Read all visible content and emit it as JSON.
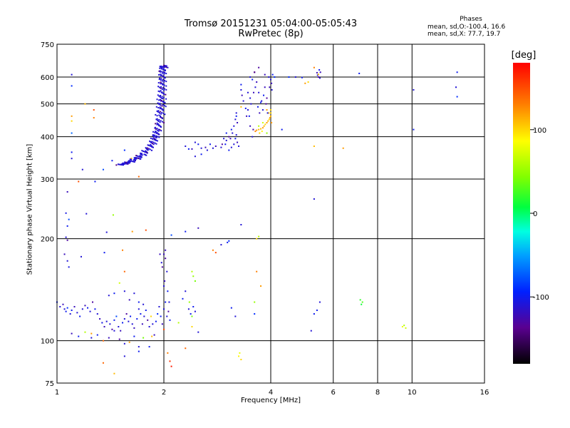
{
  "chart_data": {
    "type": "scatter",
    "title": "Tromsø 20151231 05:04:00-05:05:43",
    "subtitle": "RwPretec (8p)",
    "xlabel": "Frequency [MHz]",
    "ylabel": "Stationary phase Virtual Height [km]",
    "x_scale": "log",
    "y_scale": "log",
    "xlim": [
      1,
      16
    ],
    "ylim": [
      75,
      750
    ],
    "x_ticks": [
      1,
      2,
      4,
      6,
      8,
      10,
      16
    ],
    "x_tick_labels": [
      "1",
      "2",
      "4",
      "6",
      "8",
      "10",
      "16"
    ],
    "x_grid": [
      2,
      4,
      6,
      8,
      10
    ],
    "y_ticks": [
      75,
      100,
      200,
      300,
      400,
      500,
      600,
      750
    ],
    "y_tick_labels": [
      "75",
      "100",
      "200",
      "300",
      "400",
      "500",
      "600",
      "750"
    ],
    "y_grid": [
      100,
      200,
      300,
      400,
      500,
      600
    ],
    "grid": true,
    "stats": {
      "heading": "Phases",
      "line1": "mean, sd,O:-100.4, 16.6",
      "line2": "mean, sd,X:  77.7, 19.7"
    },
    "colorbar": {
      "label": "[deg]",
      "range": [
        -180,
        180
      ],
      "ticks": [
        100,
        0,
        -100
      ],
      "tick_labels": [
        "100",
        "0",
        "-100"
      ]
    },
    "points_note_values": "phase in degrees",
    "points": [
      [
        1.1,
        610,
        -110
      ],
      [
        1.1,
        565,
        -90
      ],
      [
        1.1,
        460,
        120
      ],
      [
        1.1,
        445,
        100
      ],
      [
        1.1,
        410,
        -70
      ],
      [
        1.1,
        360,
        -100
      ],
      [
        1.1,
        345,
        -110
      ],
      [
        1.2,
        500,
        110
      ],
      [
        1.27,
        480,
        150
      ],
      [
        1.27,
        455,
        130
      ],
      [
        1.18,
        320,
        -110
      ],
      [
        1.15,
        295,
        150
      ],
      [
        1.07,
        275,
        -120
      ],
      [
        1.06,
        238,
        -105
      ],
      [
        1.08,
        228,
        -80
      ],
      [
        1.07,
        218,
        -100
      ],
      [
        1.06,
        202,
        -110
      ],
      [
        1.07,
        198,
        -130
      ],
      [
        1.05,
        180,
        -120
      ],
      [
        1.07,
        172,
        -110
      ],
      [
        1.08,
        165,
        -105
      ],
      [
        1.21,
        237,
        -110
      ],
      [
        1.44,
        235,
        50
      ],
      [
        1.38,
        209,
        -110
      ],
      [
        1.36,
        182,
        -100
      ],
      [
        1.17,
        177,
        -110
      ],
      [
        1.53,
        185,
        130
      ],
      [
        1.63,
        210,
        120
      ],
      [
        1.78,
        212,
        150
      ],
      [
        2.1,
        205,
        -80
      ],
      [
        2.04,
        160,
        -110
      ],
      [
        2.02,
        175,
        -130
      ],
      [
        2.0,
        180,
        -120
      ],
      [
        1.28,
        295,
        -100
      ],
      [
        1.35,
        320,
        -80
      ],
      [
        1.43,
        340,
        -100
      ],
      [
        1.55,
        365,
        -90
      ],
      [
        1.62,
        345,
        110
      ],
      [
        1.7,
        305,
        140
      ],
      [
        1.0,
        130,
        -100
      ],
      [
        1.02,
        126,
        -110
      ],
      [
        1.04,
        128,
        -120
      ],
      [
        1.05,
        124,
        -110
      ],
      [
        1.06,
        122,
        -100
      ],
      [
        1.07,
        125,
        -90
      ],
      [
        1.09,
        120,
        -110
      ],
      [
        1.1,
        123,
        -100
      ],
      [
        1.12,
        126,
        -120
      ],
      [
        1.14,
        121,
        -110
      ],
      [
        1.16,
        118,
        -100
      ],
      [
        1.18,
        124,
        -110
      ],
      [
        1.2,
        127,
        -120
      ],
      [
        1.22,
        125,
        -100
      ],
      [
        1.24,
        122,
        -110
      ],
      [
        1.26,
        130,
        -130
      ],
      [
        1.28,
        124,
        -100
      ],
      [
        1.3,
        120,
        -110
      ],
      [
        1.32,
        116,
        -120
      ],
      [
        1.34,
        113,
        -105
      ],
      [
        1.36,
        110,
        -120
      ],
      [
        1.38,
        114,
        -110
      ],
      [
        1.41,
        112,
        -110
      ],
      [
        1.43,
        108,
        -130
      ],
      [
        1.45,
        115,
        -100
      ],
      [
        1.47,
        118,
        -80
      ],
      [
        1.49,
        110,
        -110
      ],
      [
        1.51,
        107,
        -120
      ],
      [
        1.53,
        113,
        -100
      ],
      [
        1.55,
        116,
        -110
      ],
      [
        1.57,
        120,
        -130
      ],
      [
        1.59,
        114,
        -110
      ],
      [
        1.61,
        118,
        -100
      ],
      [
        1.63,
        112,
        -110
      ],
      [
        1.65,
        109,
        -120
      ],
      [
        1.68,
        116,
        -100
      ],
      [
        1.7,
        124,
        -110
      ],
      [
        1.72,
        120,
        -100
      ],
      [
        1.74,
        112,
        -120
      ],
      [
        1.76,
        118,
        -110
      ],
      [
        1.78,
        123,
        -100
      ],
      [
        1.8,
        115,
        -130
      ],
      [
        1.82,
        110,
        -110
      ],
      [
        1.84,
        118,
        100
      ],
      [
        1.86,
        112,
        -110
      ],
      [
        1.88,
        104,
        -120
      ],
      [
        1.9,
        114,
        -100
      ],
      [
        1.92,
        120,
        -90
      ],
      [
        1.94,
        126,
        -110
      ],
      [
        1.96,
        118,
        -100
      ],
      [
        1.98,
        112,
        -120
      ],
      [
        2.0,
        124,
        -110
      ],
      [
        2.02,
        130,
        -100
      ],
      [
        2.04,
        118,
        -110
      ],
      [
        2.06,
        122,
        -130
      ],
      [
        2.08,
        115,
        -100
      ],
      [
        1.1,
        105,
        -120
      ],
      [
        1.15,
        103,
        -100
      ],
      [
        1.2,
        106,
        60
      ],
      [
        1.25,
        102,
        -110
      ],
      [
        1.3,
        104,
        -100
      ],
      [
        1.35,
        100,
        140
      ],
      [
        1.4,
        102,
        -120
      ],
      [
        1.45,
        107,
        -110
      ],
      [
        1.5,
        101,
        -130
      ],
      [
        1.55,
        98,
        -110
      ],
      [
        1.6,
        99,
        120
      ],
      [
        1.65,
        103,
        -100
      ],
      [
        1.7,
        96,
        -110
      ],
      [
        1.75,
        102,
        40
      ],
      [
        1.82,
        96,
        -100
      ],
      [
        1.4,
        136,
        -110
      ],
      [
        1.45,
        138,
        -100
      ],
      [
        1.55,
        140,
        -110
      ],
      [
        1.6,
        132,
        -120
      ],
      [
        1.65,
        138,
        -110
      ],
      [
        1.7,
        130,
        -100
      ],
      [
        1.75,
        128,
        -110
      ],
      [
        1.5,
        148,
        70
      ],
      [
        1.55,
        160,
        140
      ],
      [
        1.95,
        180,
        -120
      ],
      [
        1.97,
        170,
        -110
      ],
      [
        1.98,
        165,
        -130
      ],
      [
        2.02,
        185,
        -120
      ],
      [
        2.0,
        145,
        -110
      ],
      [
        2.05,
        140,
        -100
      ],
      [
        2.01,
        150,
        -120
      ],
      [
        2.07,
        130,
        -110
      ],
      [
        2.4,
        160,
        60
      ],
      [
        2.42,
        155,
        50
      ],
      [
        2.45,
        150,
        40
      ],
      [
        2.35,
        124,
        -110
      ],
      [
        2.38,
        120,
        -100
      ],
      [
        2.4,
        118,
        40
      ],
      [
        2.42,
        126,
        -100
      ],
      [
        2.45,
        122,
        -110
      ],
      [
        2.36,
        130,
        50
      ],
      [
        2.3,
        140,
        -110
      ],
      [
        2.26,
        133,
        -100
      ],
      [
        2.05,
        92,
        130
      ],
      [
        2.08,
        87,
        160
      ],
      [
        2.1,
        84,
        170
      ],
      [
        2.3,
        95,
        140
      ],
      [
        2.4,
        110,
        100
      ],
      [
        2.5,
        106,
        -110
      ],
      [
        2.2,
        113,
        60
      ],
      [
        2.0,
        108,
        150
      ],
      [
        1.85,
        103,
        110
      ],
      [
        1.7,
        93,
        -100
      ],
      [
        1.55,
        90,
        -110
      ],
      [
        1.45,
        80,
        110
      ],
      [
        1.35,
        86,
        140
      ],
      [
        1.25,
        105,
        120
      ],
      [
        3.25,
        90,
        90
      ],
      [
        3.27,
        92,
        80
      ],
      [
        3.3,
        88,
        100
      ],
      [
        3.18,
        118,
        -110
      ],
      [
        3.1,
        125,
        -100
      ],
      [
        3.6,
        120,
        -90
      ],
      [
        3.6,
        130,
        50
      ],
      [
        3.7,
        203,
        60
      ],
      [
        3.65,
        200,
        100
      ],
      [
        3.75,
        145,
        120
      ],
      [
        3.02,
        195,
        -100
      ],
      [
        3.05,
        197,
        -90
      ],
      [
        2.9,
        192,
        -110
      ],
      [
        2.8,
        182,
        150
      ],
      [
        2.75,
        185,
        130
      ],
      [
        3.3,
        220,
        -110
      ],
      [
        3.65,
        160,
        130
      ],
      [
        2.5,
        215,
        -120
      ],
      [
        2.3,
        210,
        -100
      ],
      [
        5.3,
        262,
        -110
      ],
      [
        5.3,
        120,
        -100
      ],
      [
        5.5,
        130,
        -110
      ],
      [
        5.4,
        123,
        -100
      ],
      [
        7.15,
        132,
        20
      ],
      [
        7.2,
        128,
        10
      ],
      [
        7.25,
        130,
        30
      ],
      [
        9.4,
        110,
        80
      ],
      [
        9.5,
        111,
        60
      ],
      [
        9.6,
        109,
        70
      ],
      [
        5.2,
        107,
        -110
      ],
      [
        5.3,
        375,
        110
      ],
      [
        6.4,
        370,
        120
      ],
      [
        4.3,
        420,
        -100
      ],
      [
        10.1,
        420,
        -100
      ],
      [
        4.5,
        600,
        -90
      ],
      [
        4.7,
        600,
        -110
      ],
      [
        4.9,
        598,
        -100
      ],
      [
        5.0,
        575,
        120
      ],
      [
        5.1,
        580,
        100
      ],
      [
        5.3,
        640,
        130
      ],
      [
        7.1,
        615,
        -100
      ],
      [
        10.1,
        550,
        -110
      ],
      [
        13.4,
        620,
        -100
      ],
      [
        13.3,
        560,
        -110
      ],
      [
        13.4,
        525,
        -90
      ],
      [
        5.4,
        618,
        -120
      ],
      [
        5.42,
        608,
        -110
      ],
      [
        5.45,
        600,
        -130
      ],
      [
        5.5,
        596,
        -110
      ],
      [
        5.48,
        630,
        -100
      ],
      [
        5.52,
        620,
        -120
      ],
      [
        5.45,
        611,
        110
      ],
      [
        3.62,
        415,
        130
      ],
      [
        3.65,
        418,
        120
      ],
      [
        3.7,
        420,
        110
      ],
      [
        3.72,
        410,
        100
      ],
      [
        3.75,
        422,
        110
      ],
      [
        3.78,
        415,
        90
      ],
      [
        3.8,
        425,
        120
      ],
      [
        3.83,
        430,
        110
      ],
      [
        3.86,
        435,
        100
      ],
      [
        3.9,
        440,
        120
      ],
      [
        3.93,
        445,
        110
      ],
      [
        3.96,
        450,
        100
      ],
      [
        3.98,
        455,
        120
      ],
      [
        4.0,
        460,
        110
      ],
      [
        3.7,
        430,
        60
      ],
      [
        3.8,
        440,
        70
      ],
      [
        3.9,
        410,
        50
      ],
      [
        4.0,
        470,
        100
      ],
      [
        4.02,
        440,
        120
      ],
      [
        3.95,
        470,
        110
      ],
      [
        4.0,
        480,
        100
      ],
      [
        3.9,
        480,
        120
      ],
      [
        3.5,
        520,
        -110
      ],
      [
        3.55,
        590,
        -100
      ],
      [
        3.6,
        620,
        -130
      ],
      [
        3.65,
        580,
        -120
      ],
      [
        3.7,
        540,
        -110
      ],
      [
        3.75,
        505,
        -100
      ],
      [
        3.8,
        480,
        -110
      ],
      [
        3.85,
        560,
        -120
      ],
      [
        3.9,
        520,
        -130
      ],
      [
        3.95,
        600,
        -110
      ],
      [
        4.05,
        610,
        -100
      ],
      [
        4.0,
        590,
        -110
      ],
      [
        4.02,
        575,
        -120
      ],
      [
        4.1,
        600,
        -90
      ],
      [
        3.45,
        480,
        -110
      ],
      [
        3.48,
        460,
        -100
      ],
      [
        3.5,
        430,
        -120
      ],
      [
        3.55,
        400,
        -110
      ],
      [
        3.57,
        420,
        -130
      ],
      [
        3.52,
        500,
        -110
      ],
      [
        3.58,
        540,
        -120
      ],
      [
        3.62,
        560,
        -110
      ],
      [
        3.68,
        490,
        -100
      ],
      [
        3.72,
        470,
        -120
      ],
      [
        3.77,
        510,
        -110
      ],
      [
        3.82,
        530,
        -100
      ],
      [
        3.88,
        500,
        -130
      ],
      [
        3.92,
        470,
        -110
      ],
      [
        3.97,
        560,
        -120
      ],
      [
        4.03,
        550,
        -110
      ],
      [
        3.6,
        620,
        -140
      ],
      [
        3.7,
        640,
        -130
      ],
      [
        3.85,
        610,
        -120
      ],
      [
        3.5,
        600,
        -110
      ],
      [
        3.3,
        570,
        -100
      ],
      [
        3.3,
        550,
        -110
      ],
      [
        3.32,
        530,
        -120
      ],
      [
        3.35,
        510,
        -110
      ],
      [
        3.4,
        485,
        -100
      ],
      [
        3.42,
        460,
        -120
      ],
      [
        3.45,
        540,
        -110
      ],
      [
        3.3,
        490,
        110
      ],
      [
        3.2,
        470,
        -110
      ],
      [
        3.2,
        460,
        -100
      ],
      [
        3.18,
        450,
        -110
      ],
      [
        3.22,
        440,
        -120
      ],
      [
        3.15,
        430,
        -110
      ],
      [
        3.1,
        420,
        -100
      ],
      [
        3.12,
        410,
        -110
      ],
      [
        3.05,
        400,
        -130
      ],
      [
        3.0,
        390,
        -110
      ],
      [
        2.98,
        380,
        -100
      ],
      [
        3.08,
        395,
        -120
      ],
      [
        3.15,
        380,
        -110
      ],
      [
        3.18,
        395,
        -100
      ],
      [
        3.2,
        405,
        -110
      ],
      [
        3.22,
        385,
        -120
      ],
      [
        3.25,
        375,
        -110
      ],
      [
        3.0,
        410,
        -100
      ],
      [
        2.95,
        395,
        -110
      ],
      [
        2.92,
        380,
        -130
      ],
      [
        2.9,
        372,
        -110
      ],
      [
        3.05,
        365,
        -100
      ],
      [
        3.1,
        372,
        -110
      ],
      [
        2.8,
        375,
        -120
      ],
      [
        2.75,
        370,
        -110
      ],
      [
        2.7,
        380,
        -100
      ],
      [
        2.65,
        365,
        -110
      ],
      [
        2.62,
        372,
        -120
      ],
      [
        2.55,
        370,
        -110
      ],
      [
        2.5,
        380,
        -100
      ],
      [
        2.45,
        385,
        -110
      ],
      [
        2.4,
        368,
        -120
      ],
      [
        2.35,
        368,
        -100
      ],
      [
        2.3,
        375,
        -110
      ],
      [
        2.55,
        355,
        -100
      ],
      [
        2.45,
        350,
        -110
      ]
    ],
    "curve_note": "dense lower F-region trace",
    "trace": [
      [
        1.5,
        330
      ],
      [
        1.55,
        333
      ],
      [
        1.6,
        337
      ],
      [
        1.65,
        342
      ],
      [
        1.7,
        348
      ],
      [
        1.75,
        356
      ],
      [
        1.8,
        366
      ],
      [
        1.85,
        378
      ],
      [
        1.88,
        392
      ],
      [
        1.9,
        405
      ],
      [
        1.92,
        420
      ],
      [
        1.94,
        440
      ],
      [
        1.95,
        460
      ],
      [
        1.96,
        480
      ],
      [
        1.97,
        500
      ],
      [
        1.97,
        520
      ],
      [
        1.98,
        545
      ],
      [
        1.98,
        570
      ],
      [
        1.98,
        595
      ],
      [
        1.98,
        620
      ],
      [
        1.99,
        640
      ],
      [
        2.0,
        650
      ]
    ]
  }
}
